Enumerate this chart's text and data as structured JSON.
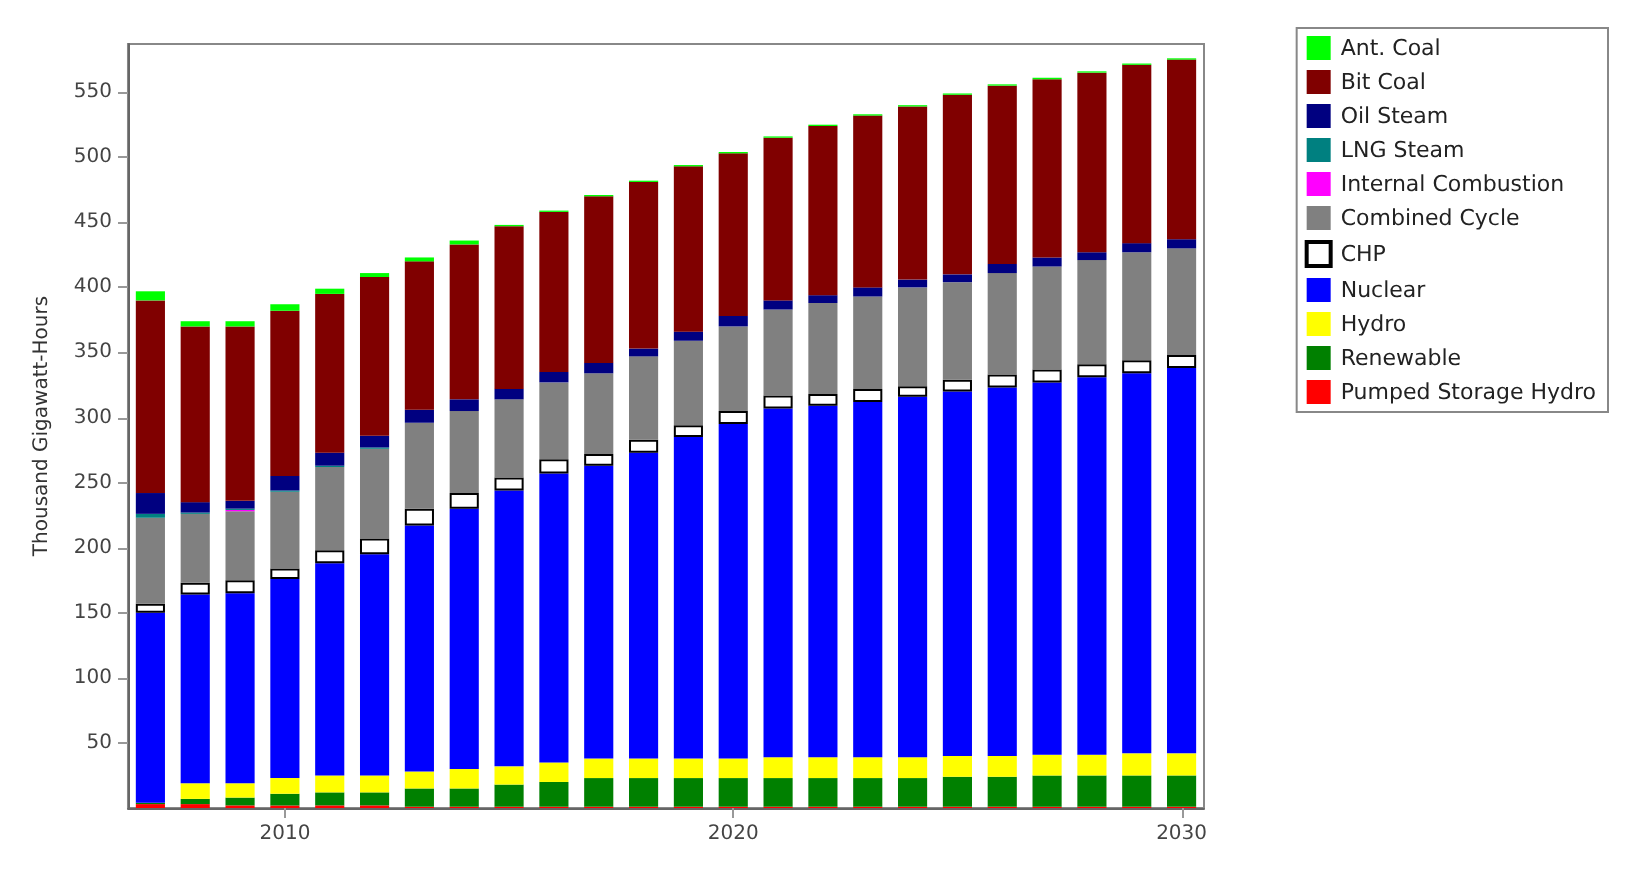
{
  "chart_data": {
    "type": "bar",
    "stacked": true,
    "ylabel": "Thousand Gigawatt-Hours",
    "ylim": [
      0,
      587
    ],
    "yticks": [
      50,
      100,
      150,
      200,
      250,
      300,
      350,
      400,
      450,
      500,
      550
    ],
    "grid": false,
    "legend": "top right",
    "categories": [
      null,
      null,
      null,
      "2010",
      null,
      null,
      null,
      null,
      null,
      null,
      null,
      null,
      null,
      "2020",
      null,
      null,
      null,
      null,
      null,
      null,
      null,
      null,
      null,
      "2030"
    ],
    "series": [
      {
        "name": "Pumped Storage Hydro",
        "color": "#ff0000",
        "values": [
          3,
          3,
          2,
          2,
          2,
          2,
          1,
          1,
          1,
          1,
          1,
          1,
          1,
          1,
          1,
          1,
          1,
          1,
          1,
          1,
          1,
          1,
          1,
          1
        ]
      },
      {
        "name": "Renewable",
        "color": "#008000",
        "values": [
          1,
          4,
          6,
          9,
          10,
          10,
          14,
          14,
          17,
          19,
          22,
          22,
          22,
          22,
          22,
          22,
          22,
          22,
          23,
          23,
          24,
          24,
          24,
          24
        ]
      },
      {
        "name": "Hydro",
        "color": "#ffff00",
        "values": [
          0,
          12,
          11,
          12,
          13,
          13,
          13,
          15,
          14,
          15,
          15,
          15,
          15,
          15,
          16,
          16,
          16,
          16,
          16,
          16,
          16,
          16,
          17,
          17
        ]
      },
      {
        "name": "Nuclear",
        "color": "#0000ff",
        "values": [
          146,
          145,
          146,
          153,
          163,
          170,
          189,
          200,
          212,
          222,
          225,
          235,
          247,
          257,
          268,
          270,
          273,
          277,
          280,
          283,
          286,
          290,
          292,
          296
        ]
      },
      {
        "name": "CHP",
        "color": "#ffffff",
        "values": [
          7,
          9,
          10,
          8,
          10,
          12,
          13,
          12,
          10,
          11,
          9,
          10,
          9,
          10,
          10,
          9,
          10,
          8,
          9,
          10,
          10,
          10,
          10,
          10
        ]
      },
      {
        "name": "Combined Cycle",
        "color": "#808080",
        "values": [
          66,
          53,
          53,
          59,
          64,
          69,
          66,
          63,
          60,
          59,
          62,
          64,
          65,
          65,
          66,
          70,
          71,
          76,
          75,
          78,
          79,
          80,
          83,
          82
        ]
      },
      {
        "name": "Internal Combustion",
        "color": "#ff00ff",
        "values": [
          0,
          0,
          1,
          0,
          0,
          0,
          0,
          0,
          0,
          0,
          0,
          0,
          0,
          0,
          0,
          0,
          0,
          0,
          0,
          0,
          0,
          0,
          0,
          0
        ]
      },
      {
        "name": "LNG Steam",
        "color": "#008080",
        "values": [
          3,
          1,
          1,
          1,
          1,
          1,
          0,
          0,
          0,
          0,
          0,
          0,
          0,
          0,
          0,
          0,
          0,
          0,
          0,
          0,
          0,
          0,
          0,
          0
        ]
      },
      {
        "name": "Oil Steam",
        "color": "#000080",
        "values": [
          16,
          8,
          6,
          11,
          10,
          9,
          10,
          9,
          8,
          8,
          8,
          6,
          7,
          8,
          7,
          6,
          7,
          6,
          6,
          7,
          7,
          6,
          7,
          7
        ]
      },
      {
        "name": "Bit Coal",
        "color": "#800000",
        "values": [
          148,
          135,
          134,
          127,
          122,
          122,
          114,
          119,
          125,
          123,
          128,
          128,
          127,
          125,
          125,
          130,
          132,
          133,
          138,
          137,
          137,
          138,
          137,
          138
        ]
      },
      {
        "name": "Ant. Coal",
        "color": "#00ff00",
        "values": [
          7,
          4,
          4,
          5,
          4,
          3,
          3,
          3,
          1,
          1,
          1,
          1,
          1,
          1,
          1,
          1,
          1,
          1,
          1,
          1,
          1,
          1,
          1,
          1
        ]
      }
    ]
  }
}
